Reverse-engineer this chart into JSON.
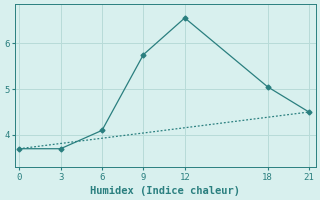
{
  "xlabel": "Humidex (Indice chaleur)",
  "background_color": "#d8f0ee",
  "line_color": "#2a7f7f",
  "line1_x": [
    0,
    3,
    6,
    9,
    12,
    18,
    21
  ],
  "line1_y": [
    3.7,
    3.7,
    4.1,
    5.75,
    6.55,
    5.05,
    4.5
  ],
  "line2_x": [
    0,
    21
  ],
  "line2_y": [
    3.7,
    4.5
  ],
  "xlim": [
    -0.3,
    21.5
  ],
  "ylim": [
    3.3,
    6.85
  ],
  "xticks": [
    0,
    3,
    6,
    9,
    12,
    18,
    21
  ],
  "yticks": [
    4,
    5,
    6
  ],
  "marker": "D",
  "markersize": 2.5,
  "linewidth": 0.9,
  "grid_color": "#b8dbd8",
  "font_color": "#2a7f7f",
  "tick_fontsize": 6.5,
  "label_fontsize": 7.5
}
